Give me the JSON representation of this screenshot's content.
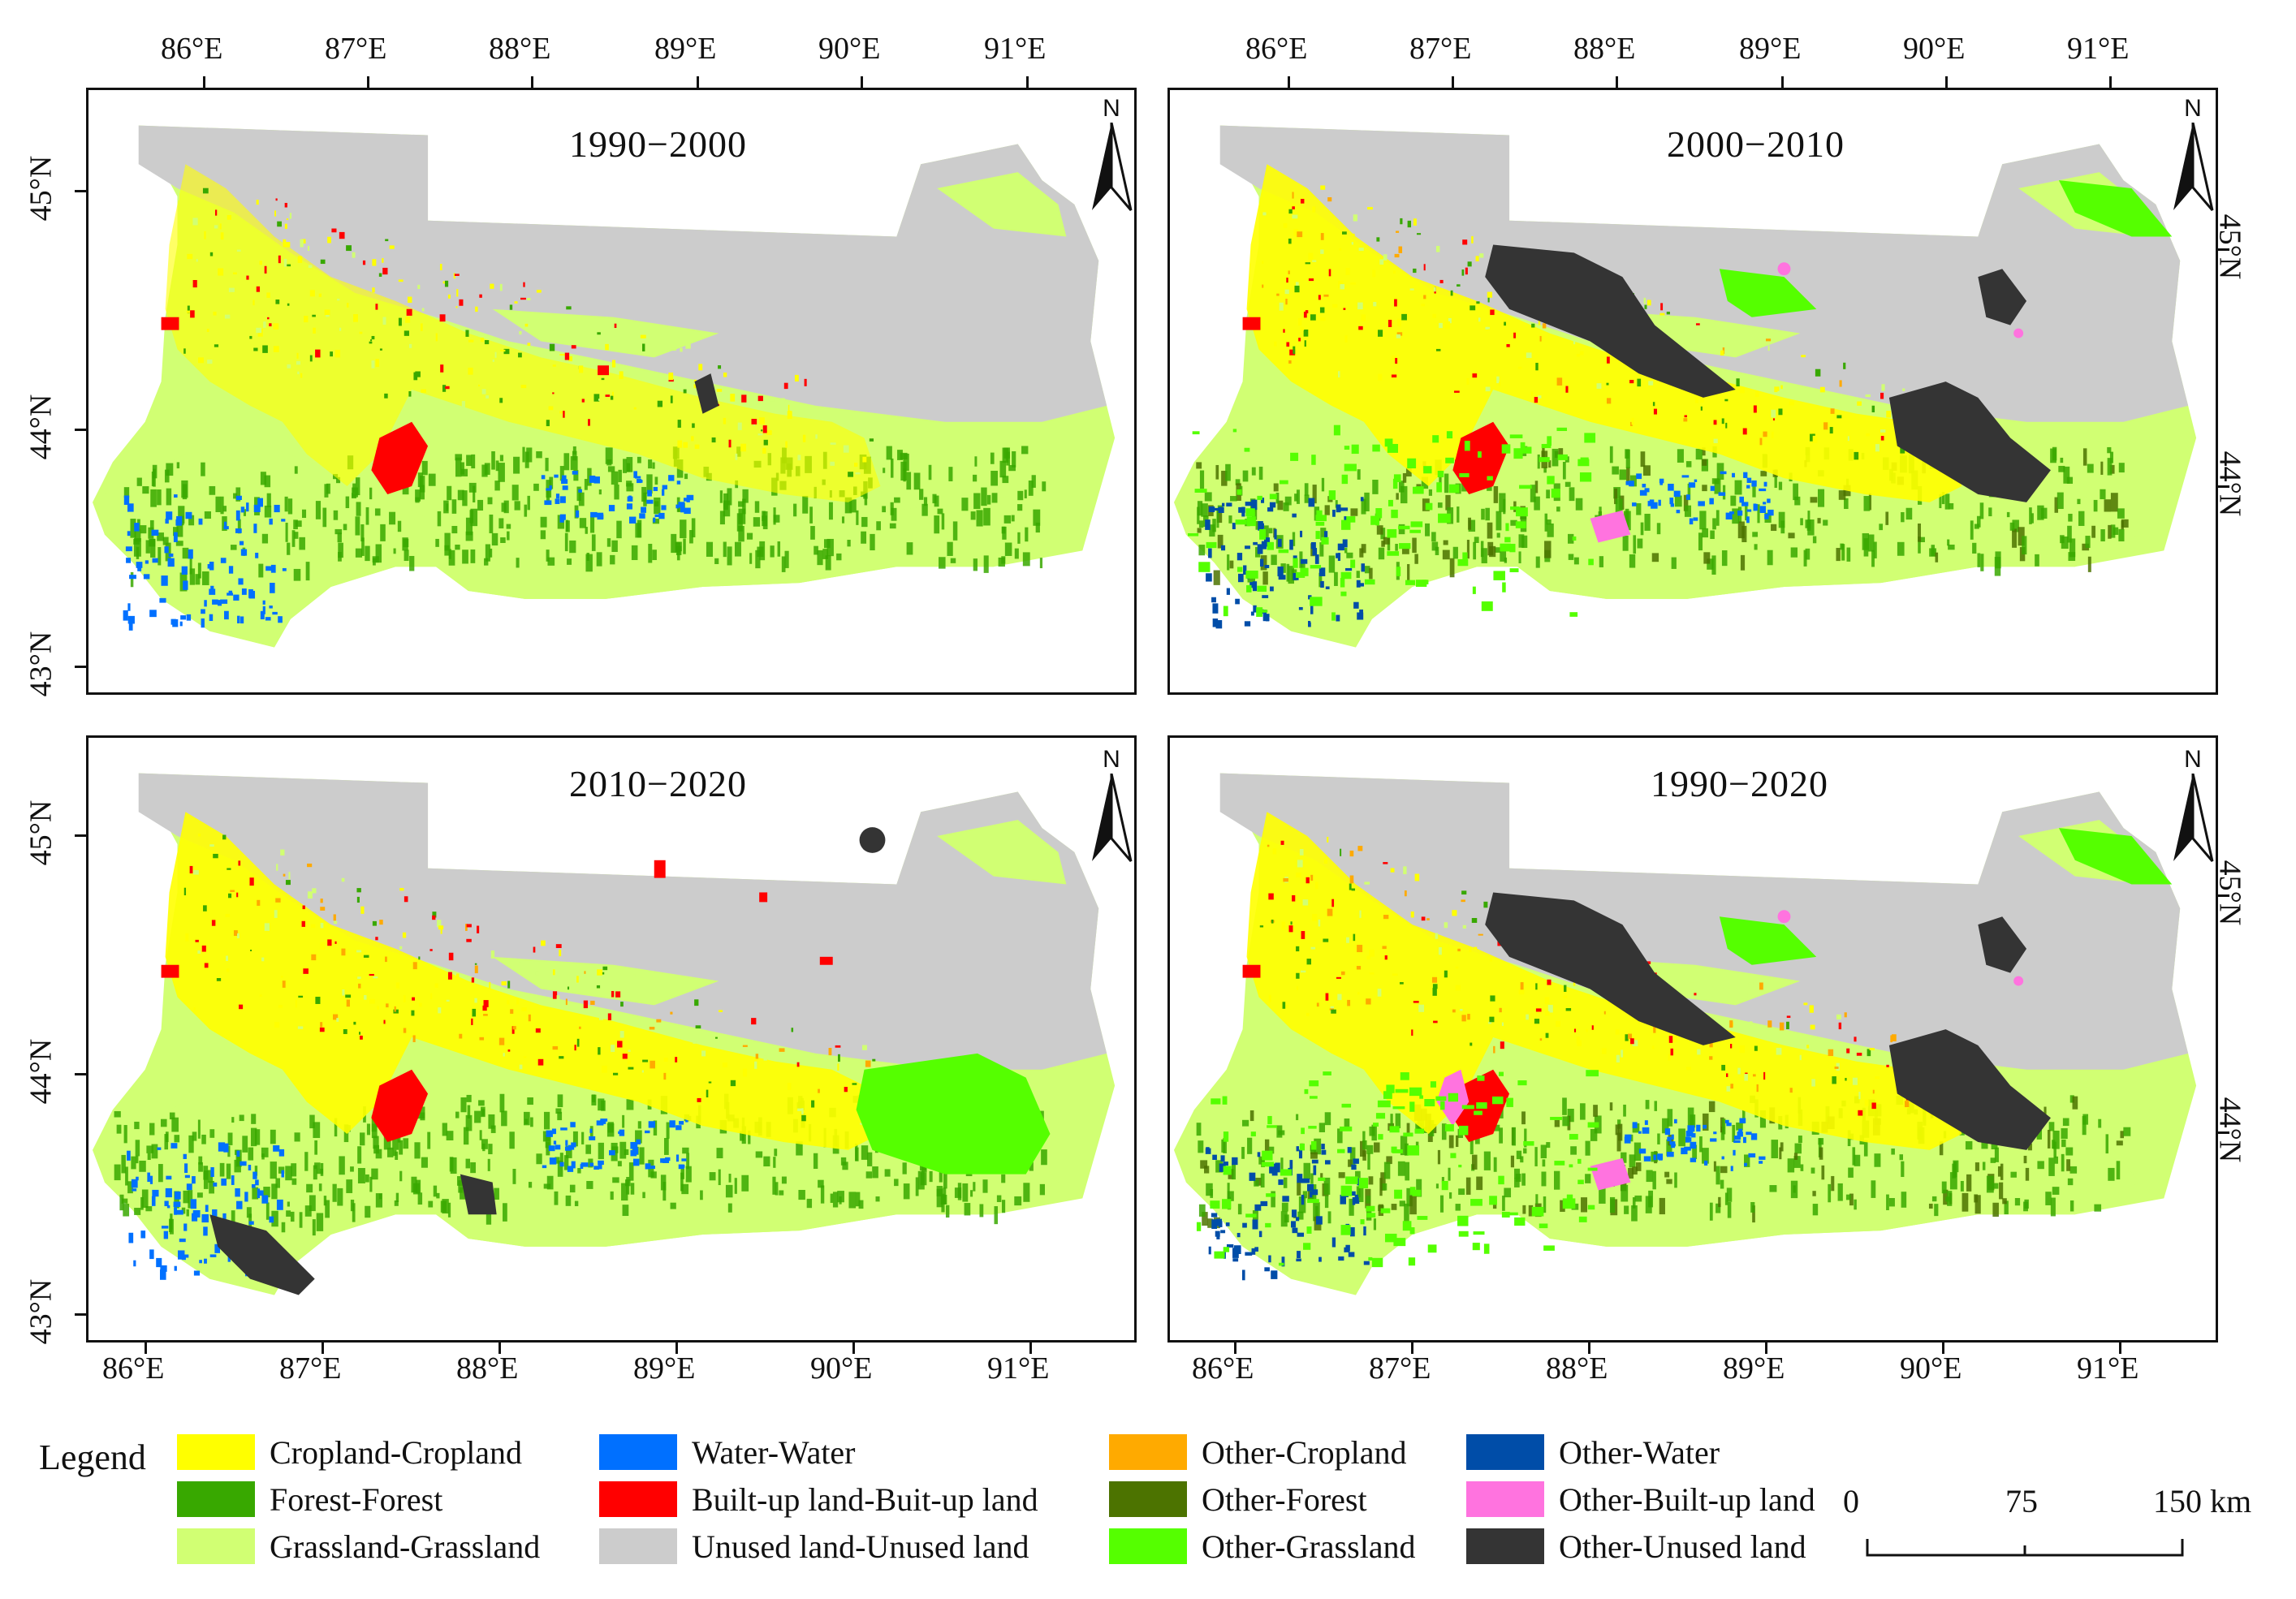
{
  "panels": [
    {
      "title": "1990−2000"
    },
    {
      "title": "2000−2010"
    },
    {
      "title": "2010−2020"
    },
    {
      "title": "1990−2020"
    }
  ],
  "north_label": "N",
  "lon_ticks": [
    "86°E",
    "87°E",
    "88°E",
    "89°E",
    "90°E",
    "91°E"
  ],
  "lat_ticks_top_left": [
    "45°N",
    "44°N",
    "43°N"
  ],
  "lat_ticks_top_right": [
    "45°N",
    "44°N"
  ],
  "lat_ticks_bottom_left": [
    "45°N",
    "44°N",
    "43°N"
  ],
  "lat_ticks_bottom_right": [
    "45°N",
    "44°N"
  ],
  "legend": {
    "title": "Legend",
    "items": [
      {
        "label": "Cropland-Cropland",
        "color": "#ffff00"
      },
      {
        "label": "Forest-Forest",
        "color": "#38a800"
      },
      {
        "label": "Grassland-Grassland",
        "color": "#d1ff73"
      },
      {
        "label": "Water-Water",
        "color": "#0070ff"
      },
      {
        "label": "Built-up land-Buit-up land",
        "color": "#ff0000"
      },
      {
        "label": "Unused land-Unused land",
        "color": "#cccccc"
      },
      {
        "label": "Other-Cropland",
        "color": "#ffaa00"
      },
      {
        "label": "Other-Forest",
        "color": "#4c7300"
      },
      {
        "label": "Other-Grassland",
        "color": "#55ff00"
      },
      {
        "label": "Other-Water",
        "color": "#004da8"
      },
      {
        "label": "Other-Built-up land",
        "color": "#ff73df"
      },
      {
        "label": "Other-Unused land",
        "color": "#343434"
      }
    ]
  },
  "scale": {
    "labels": [
      "0",
      "75",
      "150 km"
    ]
  }
}
